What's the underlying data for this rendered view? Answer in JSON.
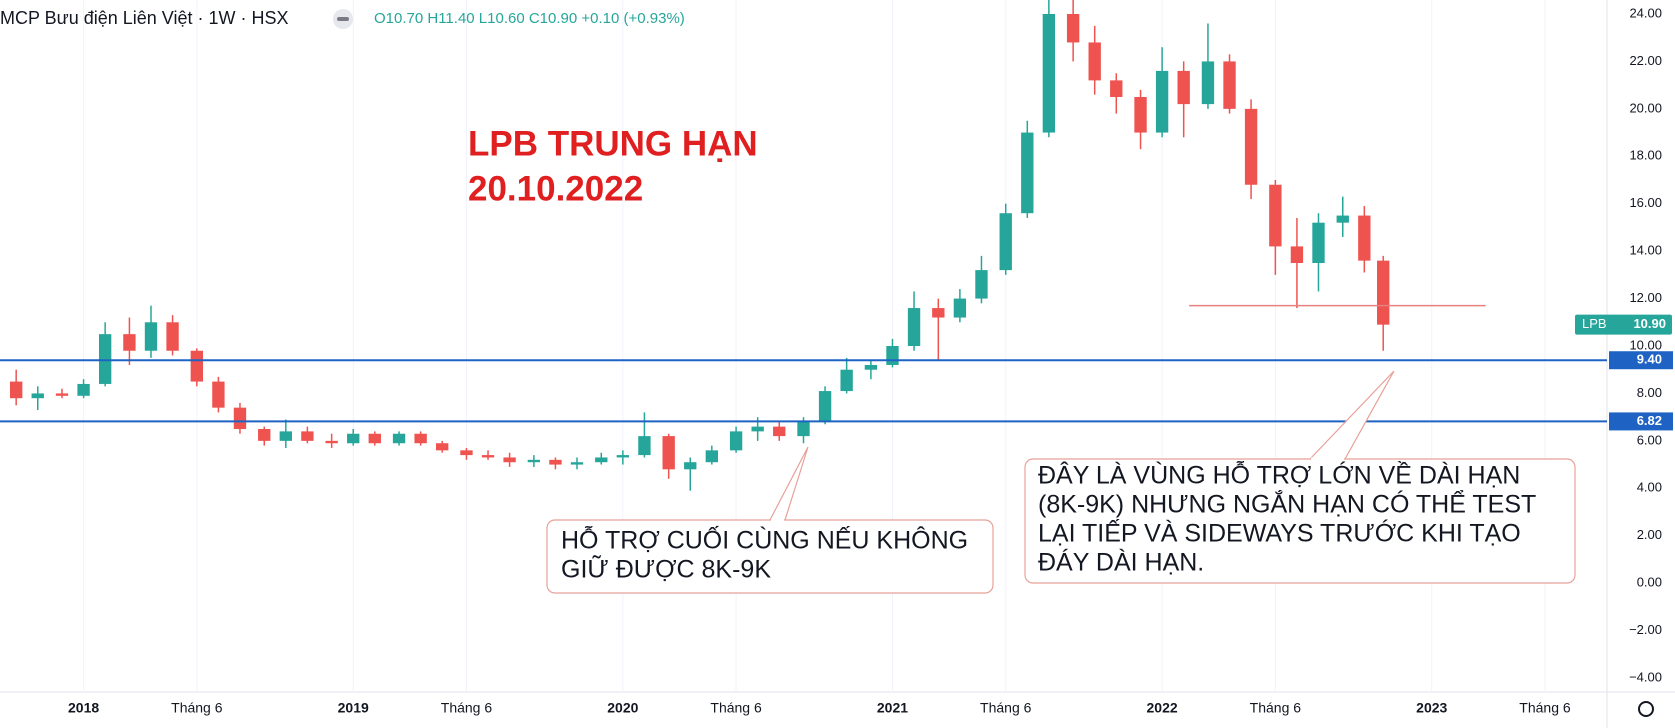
{
  "header": {
    "symbol": "MCP Bưu điện Liên Việt · 1W · HSX",
    "ohlc": "O10.70 H11.40 L10.60 C10.90 +0.10 (+0.93%)"
  },
  "chart_data": {
    "type": "candlestick",
    "name": "LPB",
    "up_color": "#26a69a",
    "down_color": "#ef5350",
    "title_lines": [
      "LPB TRUNG HẠN",
      "20.10.2022"
    ],
    "x": [
      2017.75,
      2017.83,
      2017.92,
      2018.0,
      2018.08,
      2018.17,
      2018.25,
      2018.33,
      2018.42,
      2018.5,
      2018.58,
      2018.67,
      2018.75,
      2018.83,
      2018.92,
      2019.0,
      2019.08,
      2019.17,
      2019.25,
      2019.33,
      2019.42,
      2019.5,
      2019.58,
      2019.67,
      2019.75,
      2019.83,
      2019.92,
      2020.0,
      2020.08,
      2020.17,
      2020.25,
      2020.33,
      2020.42,
      2020.5,
      2020.58,
      2020.67,
      2020.75,
      2020.83,
      2020.92,
      2021.0,
      2021.08,
      2021.17,
      2021.25,
      2021.33,
      2021.42,
      2021.5,
      2021.58,
      2021.67,
      2021.75,
      2021.83,
      2021.92,
      2022.0,
      2022.08,
      2022.17,
      2022.25,
      2022.33,
      2022.42,
      2022.5,
      2022.58,
      2022.67,
      2022.75,
      2022.82
    ],
    "open": [
      8.5,
      7.8,
      8.0,
      7.9,
      8.4,
      10.5,
      9.8,
      11.0,
      9.8,
      8.5,
      7.4,
      6.5,
      6.0,
      6.4,
      6.0,
      5.9,
      6.3,
      5.9,
      6.3,
      5.9,
      5.6,
      5.4,
      5.3,
      5.1,
      5.2,
      5.0,
      5.1,
      5.3,
      5.4,
      6.2,
      4.8,
      5.1,
      5.6,
      6.4,
      6.6,
      6.2,
      6.8,
      8.1,
      9.0,
      9.2,
      10.0,
      11.6,
      11.2,
      12.0,
      13.2,
      15.6,
      19.0,
      24.0,
      22.8,
      21.2,
      20.5,
      19.0,
      21.6,
      20.2,
      22.0,
      20.0,
      16.8,
      14.2,
      13.5,
      15.2,
      15.5,
      13.6
    ],
    "high": [
      9.0,
      8.3,
      8.2,
      8.6,
      11.0,
      11.2,
      11.7,
      11.3,
      9.9,
      8.7,
      7.6,
      6.6,
      6.9,
      6.6,
      6.3,
      6.5,
      6.4,
      6.4,
      6.4,
      6.0,
      5.7,
      5.6,
      5.5,
      5.4,
      5.3,
      5.3,
      5.5,
      5.6,
      7.2,
      6.3,
      5.3,
      5.8,
      6.6,
      7.0,
      6.8,
      7.0,
      8.3,
      9.5,
      9.4,
      10.3,
      12.3,
      12.0,
      12.4,
      13.8,
      16.0,
      19.5,
      24.6,
      24.6,
      23.5,
      21.5,
      20.8,
      22.6,
      22.0,
      23.6,
      22.3,
      20.4,
      17.0,
      15.4,
      15.6,
      16.3,
      15.9,
      13.8
    ],
    "low": [
      7.5,
      7.3,
      7.8,
      7.8,
      8.3,
      9.2,
      9.5,
      9.6,
      8.3,
      7.2,
      6.3,
      5.8,
      5.7,
      5.9,
      5.7,
      5.8,
      5.8,
      5.8,
      5.8,
      5.5,
      5.2,
      5.2,
      4.9,
      4.9,
      4.8,
      4.8,
      5.0,
      5.0,
      5.3,
      4.4,
      3.9,
      5.0,
      5.5,
      6.0,
      6.0,
      5.9,
      6.7,
      8.0,
      8.6,
      9.1,
      9.8,
      9.4,
      11.0,
      11.8,
      13.0,
      15.4,
      18.8,
      22.0,
      20.6,
      19.8,
      18.3,
      18.8,
      18.8,
      20.0,
      19.8,
      16.2,
      13.0,
      11.6,
      12.3,
      14.6,
      13.1,
      9.8
    ],
    "close": [
      7.8,
      8.0,
      7.9,
      8.4,
      10.5,
      9.8,
      11.0,
      9.8,
      8.5,
      7.4,
      6.5,
      6.0,
      6.4,
      6.0,
      5.9,
      6.3,
      5.9,
      6.3,
      5.9,
      5.6,
      5.4,
      5.3,
      5.1,
      5.2,
      5.0,
      5.1,
      5.3,
      5.4,
      6.2,
      4.8,
      5.1,
      5.6,
      6.4,
      6.6,
      6.2,
      6.8,
      8.1,
      9.0,
      9.2,
      10.0,
      11.6,
      11.2,
      12.0,
      13.2,
      15.6,
      19.0,
      24.0,
      22.8,
      21.2,
      20.5,
      19.0,
      21.6,
      20.2,
      22.0,
      20.0,
      16.8,
      14.2,
      13.5,
      15.2,
      15.5,
      13.6,
      10.9
    ],
    "last_price": {
      "value": 10.9,
      "label": "10.90"
    },
    "xlim": [
      2017.69,
      2023.65
    ],
    "ylim": [
      -4.59,
      24.59
    ],
    "xticks": [
      {
        "value": 2018,
        "label": "2018"
      },
      {
        "value": 2018.42,
        "label": "Tháng 6"
      },
      {
        "value": 2019,
        "label": "2019"
      },
      {
        "value": 2019.42,
        "label": "Tháng 6"
      },
      {
        "value": 2020,
        "label": "2020"
      },
      {
        "value": 2020.42,
        "label": "Tháng 6"
      },
      {
        "value": 2021,
        "label": "2021"
      },
      {
        "value": 2021.42,
        "label": "Tháng 6"
      },
      {
        "value": 2022,
        "label": "2022"
      },
      {
        "value": 2022.42,
        "label": "Tháng 6"
      },
      {
        "value": 2023,
        "label": "2023"
      },
      {
        "value": 2023.42,
        "label": "Tháng 6"
      }
    ],
    "yticks": [
      {
        "value": 24,
        "label": "24.00"
      },
      {
        "value": 22,
        "label": "22.00"
      },
      {
        "value": 20,
        "label": "20.00"
      },
      {
        "value": 18,
        "label": "18.00"
      },
      {
        "value": 16,
        "label": "16.00"
      },
      {
        "value": 14,
        "label": "14.00"
      },
      {
        "value": 12,
        "label": "12.00"
      },
      {
        "value": 10,
        "label": "10.00"
      },
      {
        "value": 8,
        "label": "8.00"
      },
      {
        "value": 6,
        "label": "6.00"
      },
      {
        "value": 4,
        "label": "4.00"
      },
      {
        "value": 2,
        "label": "2.00"
      },
      {
        "value": 0,
        "label": "0.00"
      },
      {
        "value": -2,
        "label": "−2.00"
      },
      {
        "value": -4,
        "label": "−4.00"
      }
    ],
    "grid": true,
    "levels": [
      {
        "value": 9.4,
        "label": "9.40",
        "color": "#1e63c4"
      },
      {
        "value": 6.82,
        "label": "6.82",
        "color": "#1e63c4"
      }
    ],
    "trend_line": {
      "y": 11.7,
      "x": [
        2022.1,
        2023.2
      ],
      "color": "#e88080"
    },
    "callouts": [
      [
        "HỖ TRỢ CUỐI CÙNG NẾU KHÔNG",
        "GIỮ ĐƯỢC 8K-9K"
      ],
      [
        "ĐÂY LÀ VÙNG HỖ TRỢ LỚN VỀ DÀI HẠN",
        "(8K-9K) NHƯNG NGẮN HẠN CÓ THỂ TEST",
        "LẠI TIẾP VÀ SIDEWAYS TRƯỚC KHI TẠO",
        "ĐÁY DÀI HẠN."
      ]
    ]
  }
}
